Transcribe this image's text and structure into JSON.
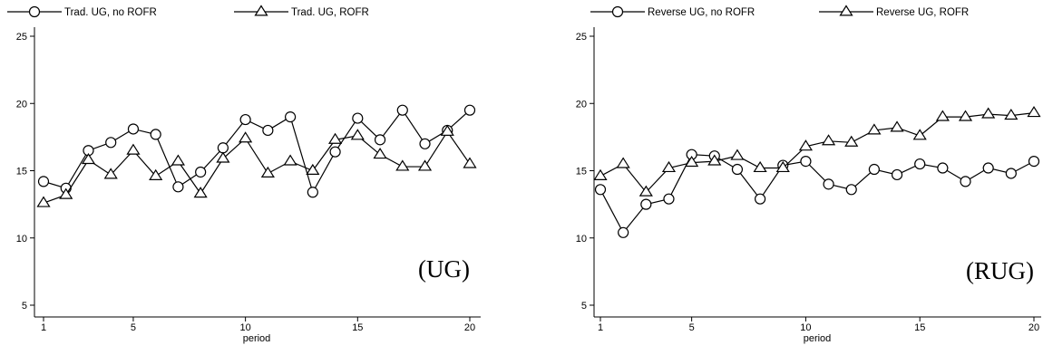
{
  "chart_data": [
    {
      "type": "line",
      "annotation": "(UG)",
      "xlabel": "period",
      "ylabel": "",
      "xlim": [
        1,
        20
      ],
      "ylim": [
        5,
        25
      ],
      "xticks": [
        "1",
        "5",
        "10",
        "15",
        "20"
      ],
      "yticks": [
        "5",
        "10",
        "15",
        "20",
        "25"
      ],
      "grid": false,
      "legend_position": "top",
      "x": [
        1,
        2,
        3,
        4,
        5,
        6,
        7,
        8,
        9,
        10,
        11,
        12,
        13,
        14,
        15,
        16,
        17,
        18,
        19,
        20
      ],
      "series": [
        {
          "name": "Trad. UG, no ROFR",
          "marker": "circle",
          "values": [
            14.2,
            13.7,
            16.5,
            17.1,
            18.1,
            17.7,
            13.8,
            14.9,
            16.7,
            18.8,
            18.0,
            19.0,
            13.4,
            16.4,
            18.9,
            17.3,
            19.5,
            17.0,
            18.0,
            19.5
          ]
        },
        {
          "name": "Trad. UG, ROFR",
          "marker": "triangle",
          "values": [
            12.6,
            13.2,
            15.8,
            14.7,
            16.5,
            14.6,
            15.7,
            13.3,
            15.9,
            17.4,
            14.8,
            15.7,
            15.0,
            17.3,
            17.6,
            16.2,
            15.3,
            15.3,
            17.9,
            15.5
          ]
        }
      ]
    },
    {
      "type": "line",
      "annotation": "(RUG)",
      "xlabel": "period",
      "ylabel": "",
      "xlim": [
        1,
        20
      ],
      "ylim": [
        5,
        25
      ],
      "xticks": [
        "1",
        "5",
        "10",
        "15",
        "20"
      ],
      "yticks": [
        "5",
        "10",
        "15",
        "20",
        "25"
      ],
      "grid": false,
      "legend_position": "top",
      "x": [
        1,
        2,
        3,
        4,
        5,
        6,
        7,
        8,
        9,
        10,
        11,
        12,
        13,
        14,
        15,
        16,
        17,
        18,
        19,
        20
      ],
      "series": [
        {
          "name": "Reverse UG, no ROFR",
          "marker": "circle",
          "values": [
            13.6,
            10.4,
            12.5,
            12.9,
            16.2,
            16.1,
            15.1,
            12.9,
            15.4,
            15.7,
            14.0,
            13.6,
            15.1,
            14.7,
            15.5,
            15.2,
            14.2,
            15.2,
            14.8,
            15.7
          ]
        },
        {
          "name": "Reverse UG, ROFR",
          "marker": "triangle",
          "values": [
            14.6,
            15.5,
            13.4,
            15.2,
            15.6,
            15.7,
            16.1,
            15.2,
            15.2,
            16.8,
            17.2,
            17.1,
            18.0,
            18.2,
            17.6,
            19.0,
            19.0,
            19.2,
            19.1,
            19.3
          ]
        }
      ]
    }
  ]
}
